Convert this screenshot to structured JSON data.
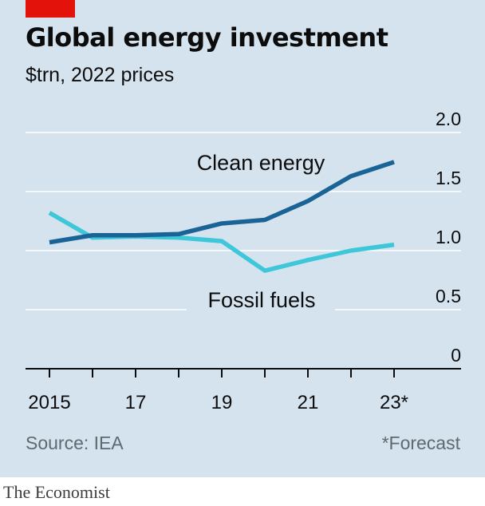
{
  "header": {
    "title": "Global energy investment",
    "subtitle": "$trn, 2022 prices"
  },
  "footer": {
    "source": "Source: IEA",
    "footnote": "*Forecast",
    "brand": "The Economist"
  },
  "colors": {
    "background": "#d5e3ef",
    "accent_tag": "#e3120b",
    "clean_energy": "#1a6396",
    "fossil_fuels": "#3ec6d9",
    "gridline": "#ffffff",
    "axis": "#0c0c0c"
  },
  "chart_data": {
    "type": "line",
    "x": [
      2015,
      2016,
      2017,
      2018,
      2019,
      2020,
      2021,
      2022,
      2023
    ],
    "x_tick_values": [
      2015,
      2017,
      2019,
      2021,
      2023
    ],
    "x_tick_labels": [
      "2015",
      "17",
      "19",
      "21",
      "23*"
    ],
    "y_ticks": [
      0,
      0.5,
      1.0,
      1.5,
      2.0
    ],
    "y_tick_labels": [
      "0",
      "0.5",
      "1.0",
      "1.5",
      "2.0"
    ],
    "ylim": [
      0,
      2.0
    ],
    "xlim": [
      2015,
      2023
    ],
    "grid": true,
    "xlabel": "",
    "ylabel": "",
    "series": [
      {
        "name": "Clean energy",
        "color": "#1a6396",
        "values": [
          1.07,
          1.13,
          1.13,
          1.14,
          1.23,
          1.26,
          1.42,
          1.63,
          1.75
        ]
      },
      {
        "name": "Fossil fuels",
        "color": "#3ec6d9",
        "values": [
          1.32,
          1.11,
          1.12,
          1.11,
          1.08,
          0.83,
          0.92,
          1.0,
          1.05
        ]
      }
    ]
  }
}
